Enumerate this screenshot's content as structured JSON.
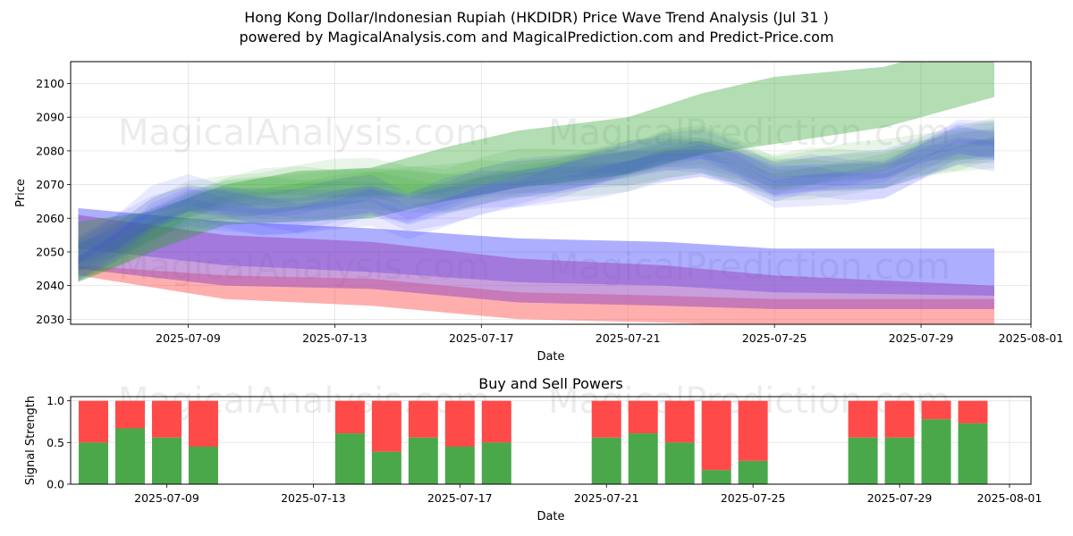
{
  "title_line1": "Hong Kong Dollar/Indonesian Rupiah (HKDIDR) Price Wave Trend Analysis (Jul 31 )",
  "title_line2": "powered by MagicalAnalysis.com and MagicalPrediction.com and Predict-Price.com",
  "watermarks": [
    "MagicalAnalysis.com",
    "MagicalPrediction.com"
  ],
  "colors": {
    "green": "#2ca02c",
    "blue": "#3f3fff",
    "red": "#ff3f3f",
    "purple": "#9b4fc0",
    "buy": "#4aa84a",
    "sell": "#ff4a4a"
  },
  "chart_data": [
    {
      "type": "area",
      "xlabel": "Date",
      "ylabel": "Price",
      "x_ticks": [
        "2025-07-09",
        "2025-07-13",
        "2025-07-17",
        "2025-07-21",
        "2025-07-25",
        "2025-07-29",
        "2025-08-01"
      ],
      "y_ticks": [
        2030,
        2040,
        2050,
        2060,
        2070,
        2080,
        2090,
        2100
      ],
      "xlim": [
        "2025-07-05 19:00",
        "2025-08-01 00:00"
      ],
      "ylim": [
        2028.5,
        2106.5
      ],
      "grid": true,
      "series": [
        {
          "color": "green",
          "style": "main band",
          "dates": [
            "2025-07-06",
            "2025-07-08",
            "2025-07-10",
            "2025-07-12",
            "2025-07-14",
            "2025-07-16",
            "2025-07-18",
            "2025-07-21",
            "2025-07-23",
            "2025-07-25",
            "2025-07-28",
            "2025-07-29",
            "2025-07-31"
          ],
          "upper": [
            2059,
            2062,
            2070,
            2074,
            2075,
            2081,
            2086,
            2090,
            2097,
            2102,
            2105,
            2108,
            2108
          ],
          "lower": [
            2041,
            2050,
            2058,
            2059,
            2060,
            2065,
            2069,
            2073,
            2079,
            2082,
            2087,
            2090,
            2096
          ]
        },
        {
          "color": "green",
          "style": "waves",
          "dates": [
            "2025-07-06",
            "2025-07-07",
            "2025-07-08",
            "2025-07-09",
            "2025-07-10",
            "2025-07-11",
            "2025-07-12",
            "2025-07-13",
            "2025-07-14",
            "2025-07-15",
            "2025-07-16",
            "2025-07-17",
            "2025-07-18",
            "2025-07-19",
            "2025-07-20",
            "2025-07-21",
            "2025-07-22",
            "2025-07-23",
            "2025-07-24",
            "2025-07-25",
            "2025-07-26",
            "2025-07-27",
            "2025-07-28",
            "2025-07-29",
            "2025-07-30",
            "2025-07-31"
          ],
          "values": [
            2048,
            2052,
            2058,
            2064,
            2067,
            2068,
            2069,
            2070,
            2071,
            2070,
            2069,
            2071,
            2073,
            2074,
            2075,
            2076,
            2079,
            2080,
            2077,
            2073,
            2074,
            2075,
            2076,
            2079,
            2081,
            2083
          ]
        },
        {
          "color": "blue",
          "style": "waves",
          "dates": [
            "2025-07-06",
            "2025-07-07",
            "2025-07-08",
            "2025-07-09",
            "2025-07-10",
            "2025-07-11",
            "2025-07-12",
            "2025-07-13",
            "2025-07-14",
            "2025-07-15",
            "2025-07-16",
            "2025-07-17",
            "2025-07-18",
            "2025-07-19",
            "2025-07-20",
            "2025-07-21",
            "2025-07-22",
            "2025-07-23",
            "2025-07-24",
            "2025-07-25",
            "2025-07-26",
            "2025-07-27",
            "2025-07-28",
            "2025-07-29",
            "2025-07-30",
            "2025-07-31"
          ],
          "values": [
            2048,
            2054,
            2062,
            2066,
            2064,
            2062,
            2062,
            2064,
            2066,
            2062,
            2065,
            2068,
            2070,
            2072,
            2074,
            2076,
            2078,
            2079,
            2076,
            2071,
            2072,
            2072,
            2073,
            2078,
            2083,
            2082
          ]
        },
        {
          "color": "blue",
          "style": "band",
          "dates": [
            "2025-07-06",
            "2025-07-10",
            "2025-07-14",
            "2025-07-18",
            "2025-07-22",
            "2025-07-25",
            "2025-07-31"
          ],
          "upper": [
            2063,
            2059,
            2057,
            2054,
            2053,
            2051,
            2051
          ],
          "lower": [
            2051,
            2046,
            2044,
            2041,
            2040,
            2038,
            2037
          ]
        },
        {
          "color": "red",
          "style": "band",
          "dates": [
            "2025-07-06",
            "2025-07-10",
            "2025-07-14",
            "2025-07-18",
            "2025-07-22",
            "2025-07-25",
            "2025-07-31"
          ],
          "upper": [
            2046,
            2043,
            2042,
            2038,
            2037,
            2036,
            2036
          ],
          "lower": [
            2043,
            2036,
            2034,
            2030,
            2029,
            2028,
            2028
          ]
        },
        {
          "color": "purple",
          "style": "band",
          "dates": [
            "2025-07-06",
            "2025-07-10",
            "2025-07-14",
            "2025-07-18",
            "2025-07-22",
            "2025-07-25",
            "2025-07-31"
          ],
          "upper": [
            2061,
            2055,
            2053,
            2048,
            2046,
            2043,
            2040
          ],
          "lower": [
            2045,
            2040,
            2039,
            2035,
            2034,
            2033,
            2033
          ]
        }
      ]
    },
    {
      "type": "bar",
      "title": "Buy and Sell Powers",
      "xlabel": "Date",
      "ylabel": "Signal Strength",
      "x_ticks": [
        "2025-07-09",
        "2025-07-13",
        "2025-07-17",
        "2025-07-21",
        "2025-07-25",
        "2025-07-29",
        "2025-08-01"
      ],
      "y_ticks": [
        "0.0",
        "0.5",
        "1.0"
      ],
      "ylim": [
        0,
        1.05
      ],
      "grid": true,
      "dates": [
        "2025-07-07",
        "2025-07-08",
        "2025-07-09",
        "2025-07-10",
        "2025-07-14",
        "2025-07-15",
        "2025-07-16",
        "2025-07-17",
        "2025-07-18",
        "2025-07-21",
        "2025-07-22",
        "2025-07-23",
        "2025-07-24",
        "2025-07-25",
        "2025-07-28",
        "2025-07-29",
        "2025-07-30",
        "2025-07-31"
      ],
      "series": [
        {
          "color": "buy",
          "values": [
            0.5,
            0.67,
            0.56,
            0.45,
            0.61,
            0.39,
            0.56,
            0.45,
            0.5,
            0.56,
            0.61,
            0.5,
            0.17,
            0.28,
            0.56,
            0.56,
            0.78,
            0.73
          ]
        },
        {
          "color": "sell",
          "values": [
            0.5,
            0.33,
            0.44,
            0.55,
            0.39,
            0.61,
            0.44,
            0.55,
            0.5,
            0.44,
            0.39,
            0.5,
            0.83,
            0.72,
            0.44,
            0.44,
            0.22,
            0.27
          ]
        }
      ]
    }
  ]
}
